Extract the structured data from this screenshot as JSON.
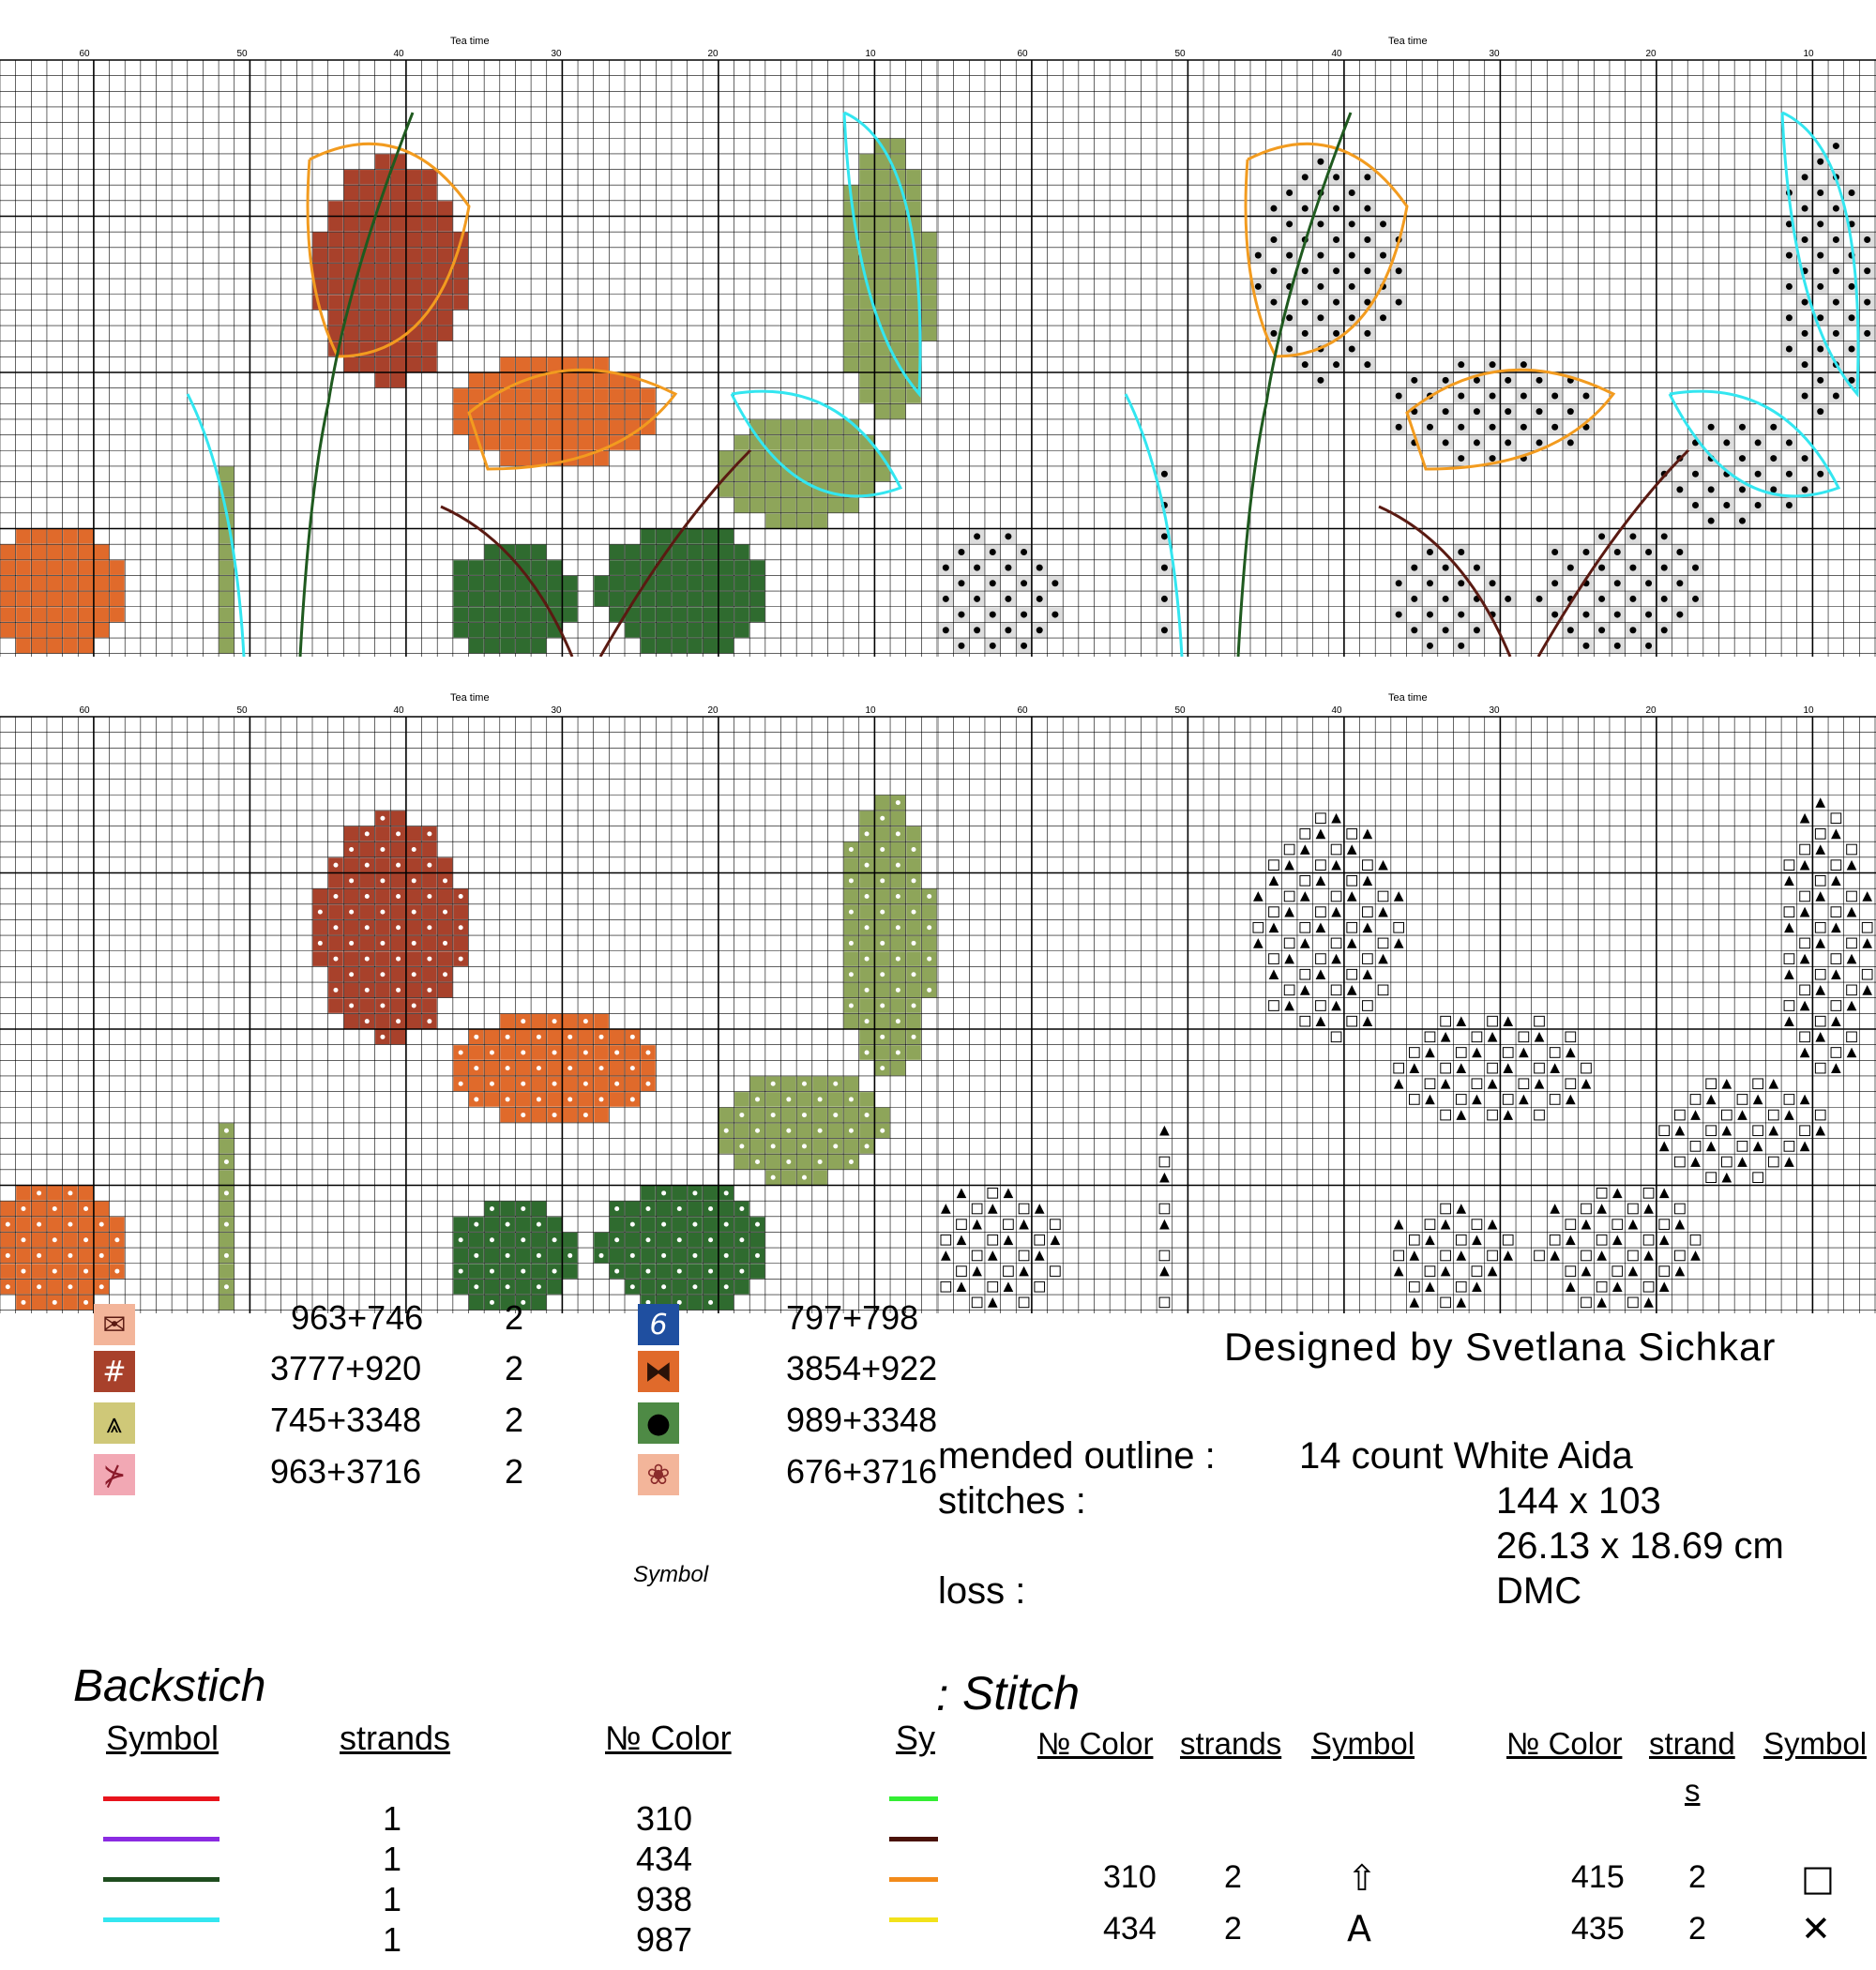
{
  "chart_panels": [
    {
      "title": "Tea time",
      "axis": [
        "60",
        "50",
        "40",
        "30",
        "20",
        "10"
      ]
    },
    {
      "title": "Tea time",
      "axis": [
        "60",
        "50",
        "40",
        "30",
        "20",
        "10"
      ]
    },
    {
      "title": "Tea time",
      "axis": [
        "60",
        "50",
        "40",
        "30",
        "20",
        "10"
      ]
    },
    {
      "title": "Tea time",
      "axis": [
        "60",
        "50",
        "40",
        "30",
        "20",
        "10"
      ]
    }
  ],
  "colors": {
    "rust": "#a8412b",
    "orange": "#e06a2b",
    "dark_red": "#8b2b2b",
    "olive": "#8ea55a",
    "dark_green": "#2f6b2f",
    "tan": "#b4763e",
    "cyan": "#33e6f0",
    "outline_orange": "#f29b1f",
    "outline_green": "#1f5a1f",
    "outline_brown": "#5a1a12"
  },
  "thread_legend": {
    "rows": [
      {
        "code_left": "963+746",
        "strands_left": "2",
        "code_right": "797+798"
      },
      {
        "code_left": "3777+920",
        "strands_left": "2",
        "code_right": "3854+922"
      },
      {
        "code_left": "745+3348",
        "strands_left": "2",
        "code_right": "989+3348"
      },
      {
        "code_left": "963+3716",
        "strands_left": "2",
        "code_right": "676+3716"
      }
    ],
    "symbol_caption": "Symbol"
  },
  "design_info": {
    "designer": "Designed by Svetlana Sichkar",
    "outline_label": "mended outline :",
    "outline_value": "14 count White Aida",
    "stitches_label": "stitches :",
    "stitches_value": "144 x 103",
    "size_value": "26.13 x 18.69 cm",
    "floss_label": "loss :",
    "floss_value": "DMC"
  },
  "backstitch": {
    "title": "Backstich",
    "col_symbol": "Symbol",
    "col_strands": "strands",
    "col_color": "№ Color",
    "col_sy": "Sy",
    "rows": [
      {
        "line_color": "#e8141c",
        "strands": "1",
        "color": "310"
      },
      {
        "line_color": "#8a2be2",
        "strands": "1",
        "color": "434"
      },
      {
        "line_color": "#1f4d1f",
        "strands": "1",
        "color": "938"
      },
      {
        "line_color": "#33e6f0",
        "strands": "1",
        "color": "987"
      }
    ],
    "right_lines": [
      "#33ee33",
      "#4a1208",
      "#f28a1a",
      "#f2e21a"
    ]
  },
  "stitch": {
    "title": "Stitch",
    "title_prefix": ":",
    "col_color": "№ Color",
    "col_strands": "strands",
    "col_symbol": "Symbol",
    "col_color2": "№ Color",
    "col_strand2": "strand",
    "col_strand2b": "s",
    "col_symbol2": "Symbol",
    "rows": [
      {
        "color": "310",
        "strands": "2",
        "symbol": "⇧",
        "color2": "415",
        "strands2": "2",
        "symbol2": "□"
      },
      {
        "color": "434",
        "strands": "2",
        "symbol": "A",
        "color2": "435",
        "strands2": "2",
        "symbol2": "✕"
      }
    ]
  }
}
